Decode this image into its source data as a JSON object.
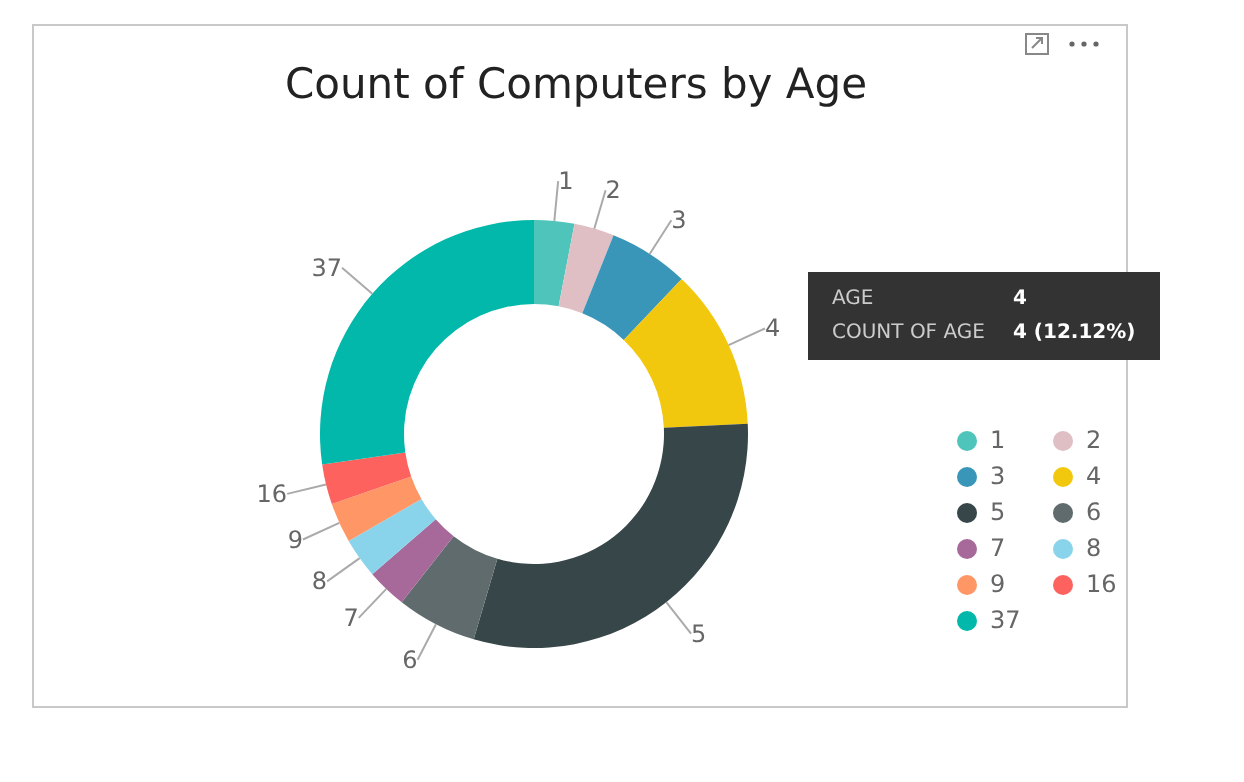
{
  "chart_data": {
    "type": "donut",
    "title": "Count of Computers by Age",
    "categories": [
      "1",
      "2",
      "3",
      "4",
      "5",
      "6",
      "7",
      "8",
      "9",
      "16",
      "37"
    ],
    "values": [
      1,
      1,
      2,
      4,
      10,
      2,
      1,
      1,
      1,
      1,
      9
    ],
    "colors": [
      "#4fc4ba",
      "#dfbfc4",
      "#3a96b9",
      "#f2c80f",
      "#374649",
      "#5f6b6d",
      "#a66999",
      "#8ad4eb",
      "#fe9666",
      "#fd625e",
      "#01b8aa"
    ],
    "legend": "right",
    "annotations": [
      "AGE",
      "4",
      "COUNT OF AGE",
      "4 (12.12%)"
    ]
  }
}
